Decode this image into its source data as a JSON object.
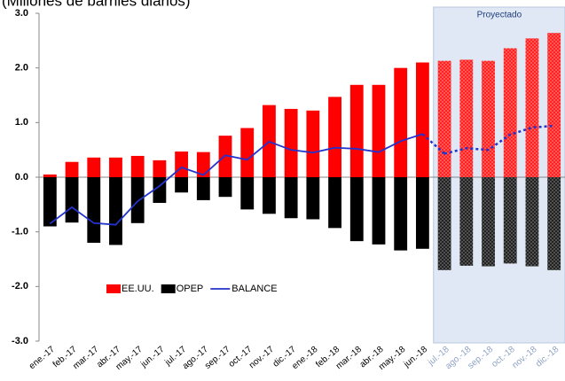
{
  "chart_data": {
    "type": "bar",
    "title": "(Millones de barriles diarios)",
    "projection": {
      "label": "Proyectado",
      "start": 18
    },
    "categories": [
      "ene.-17",
      "feb.-17",
      "mar.-17",
      "abr.-17",
      "may.-17",
      "jun.-17",
      "jul.-17",
      "ago.-17",
      "sep.-17",
      "oct.-17",
      "nov.-17",
      "dic.-17",
      "ene.-18",
      "feb.-18",
      "mar.-18",
      "abr.-18",
      "may.-18",
      "jun.-18",
      "jul.-18",
      "ago.-18",
      "sep.-18",
      "oct.-18",
      "nov.-18",
      "dic.-18"
    ],
    "series": [
      {
        "name": "EE.UU.",
        "type": "bar",
        "color": "#ff0000",
        "values": [
          0.05,
          0.28,
          0.36,
          0.36,
          0.39,
          0.31,
          0.47,
          0.46,
          0.76,
          0.9,
          1.32,
          1.25,
          1.22,
          1.47,
          1.69,
          1.69,
          2.0,
          2.1,
          2.13,
          2.15,
          2.13,
          2.36,
          2.54,
          2.64
        ]
      },
      {
        "name": "OPEP",
        "type": "bar",
        "color": "#000000",
        "values": [
          -0.9,
          -0.83,
          -1.2,
          -1.24,
          -0.84,
          -0.47,
          -0.28,
          -0.42,
          -0.36,
          -0.59,
          -0.67,
          -0.75,
          -0.77,
          -0.93,
          -1.17,
          -1.23,
          -1.34,
          -1.31,
          -1.7,
          -1.62,
          -1.63,
          -1.58,
          -1.63,
          -1.7
        ]
      },
      {
        "name": "BALANCE",
        "type": "line",
        "color": "#2233cc",
        "values": [
          -0.85,
          -0.55,
          -0.84,
          -0.87,
          -0.44,
          -0.16,
          0.18,
          0.04,
          0.4,
          0.32,
          0.65,
          0.5,
          0.45,
          0.54,
          0.52,
          0.46,
          0.66,
          0.79,
          0.43,
          0.53,
          0.5,
          0.78,
          0.91,
          0.94
        ]
      }
    ],
    "ylim": [
      -3,
      3
    ],
    "yticks": [
      {
        "value": -3,
        "label": "-3.0"
      },
      {
        "value": -2,
        "label": "-2.0"
      },
      {
        "value": -1,
        "label": "-1.0"
      },
      {
        "value": 0,
        "label": "0.0"
      },
      {
        "value": 1,
        "label": "1.0"
      },
      {
        "value": 2,
        "label": "2.0"
      },
      {
        "value": 3,
        "label": "3.0"
      }
    ],
    "grid": false
  }
}
